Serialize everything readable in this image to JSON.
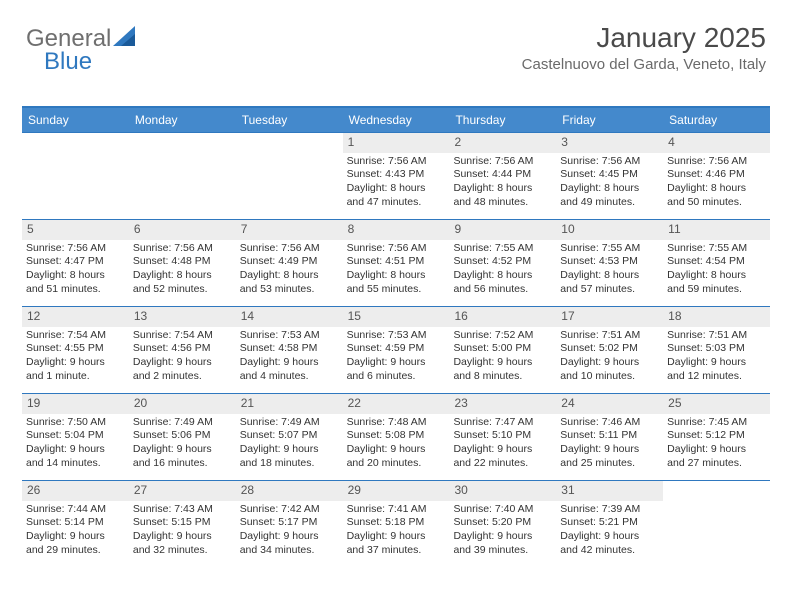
{
  "logo": {
    "text1": "General",
    "text2": "Blue"
  },
  "header": {
    "title": "January 2025",
    "location": "Castelnuovo del Garda, Veneto, Italy"
  },
  "colors": {
    "accent": "#2f78bf",
    "headerBar": "#4489cc",
    "dayBg": "#ededed"
  },
  "weekdays": [
    "Sunday",
    "Monday",
    "Tuesday",
    "Wednesday",
    "Thursday",
    "Friday",
    "Saturday"
  ],
  "labels": {
    "sunrise": "Sunrise:",
    "sunset": "Sunset:",
    "daylight": "Daylight:"
  },
  "weeks": [
    [
      {
        "day": "",
        "empty": true
      },
      {
        "day": "",
        "empty": true
      },
      {
        "day": "",
        "empty": true
      },
      {
        "day": "1",
        "sunrise": "7:56 AM",
        "sunset": "4:43 PM",
        "daylight": "8 hours and 47 minutes."
      },
      {
        "day": "2",
        "sunrise": "7:56 AM",
        "sunset": "4:44 PM",
        "daylight": "8 hours and 48 minutes."
      },
      {
        "day": "3",
        "sunrise": "7:56 AM",
        "sunset": "4:45 PM",
        "daylight": "8 hours and 49 minutes."
      },
      {
        "day": "4",
        "sunrise": "7:56 AM",
        "sunset": "4:46 PM",
        "daylight": "8 hours and 50 minutes."
      }
    ],
    [
      {
        "day": "5",
        "sunrise": "7:56 AM",
        "sunset": "4:47 PM",
        "daylight": "8 hours and 51 minutes."
      },
      {
        "day": "6",
        "sunrise": "7:56 AM",
        "sunset": "4:48 PM",
        "daylight": "8 hours and 52 minutes."
      },
      {
        "day": "7",
        "sunrise": "7:56 AM",
        "sunset": "4:49 PM",
        "daylight": "8 hours and 53 minutes."
      },
      {
        "day": "8",
        "sunrise": "7:56 AM",
        "sunset": "4:51 PM",
        "daylight": "8 hours and 55 minutes."
      },
      {
        "day": "9",
        "sunrise": "7:55 AM",
        "sunset": "4:52 PM",
        "daylight": "8 hours and 56 minutes."
      },
      {
        "day": "10",
        "sunrise": "7:55 AM",
        "sunset": "4:53 PM",
        "daylight": "8 hours and 57 minutes."
      },
      {
        "day": "11",
        "sunrise": "7:55 AM",
        "sunset": "4:54 PM",
        "daylight": "8 hours and 59 minutes."
      }
    ],
    [
      {
        "day": "12",
        "sunrise": "7:54 AM",
        "sunset": "4:55 PM",
        "daylight": "9 hours and 1 minute."
      },
      {
        "day": "13",
        "sunrise": "7:54 AM",
        "sunset": "4:56 PM",
        "daylight": "9 hours and 2 minutes."
      },
      {
        "day": "14",
        "sunrise": "7:53 AM",
        "sunset": "4:58 PM",
        "daylight": "9 hours and 4 minutes."
      },
      {
        "day": "15",
        "sunrise": "7:53 AM",
        "sunset": "4:59 PM",
        "daylight": "9 hours and 6 minutes."
      },
      {
        "day": "16",
        "sunrise": "7:52 AM",
        "sunset": "5:00 PM",
        "daylight": "9 hours and 8 minutes."
      },
      {
        "day": "17",
        "sunrise": "7:51 AM",
        "sunset": "5:02 PM",
        "daylight": "9 hours and 10 minutes."
      },
      {
        "day": "18",
        "sunrise": "7:51 AM",
        "sunset": "5:03 PM",
        "daylight": "9 hours and 12 minutes."
      }
    ],
    [
      {
        "day": "19",
        "sunrise": "7:50 AM",
        "sunset": "5:04 PM",
        "daylight": "9 hours and 14 minutes."
      },
      {
        "day": "20",
        "sunrise": "7:49 AM",
        "sunset": "5:06 PM",
        "daylight": "9 hours and 16 minutes."
      },
      {
        "day": "21",
        "sunrise": "7:49 AM",
        "sunset": "5:07 PM",
        "daylight": "9 hours and 18 minutes."
      },
      {
        "day": "22",
        "sunrise": "7:48 AM",
        "sunset": "5:08 PM",
        "daylight": "9 hours and 20 minutes."
      },
      {
        "day": "23",
        "sunrise": "7:47 AM",
        "sunset": "5:10 PM",
        "daylight": "9 hours and 22 minutes."
      },
      {
        "day": "24",
        "sunrise": "7:46 AM",
        "sunset": "5:11 PM",
        "daylight": "9 hours and 25 minutes."
      },
      {
        "day": "25",
        "sunrise": "7:45 AM",
        "sunset": "5:12 PM",
        "daylight": "9 hours and 27 minutes."
      }
    ],
    [
      {
        "day": "26",
        "sunrise": "7:44 AM",
        "sunset": "5:14 PM",
        "daylight": "9 hours and 29 minutes."
      },
      {
        "day": "27",
        "sunrise": "7:43 AM",
        "sunset": "5:15 PM",
        "daylight": "9 hours and 32 minutes."
      },
      {
        "day": "28",
        "sunrise": "7:42 AM",
        "sunset": "5:17 PM",
        "daylight": "9 hours and 34 minutes."
      },
      {
        "day": "29",
        "sunrise": "7:41 AM",
        "sunset": "5:18 PM",
        "daylight": "9 hours and 37 minutes."
      },
      {
        "day": "30",
        "sunrise": "7:40 AM",
        "sunset": "5:20 PM",
        "daylight": "9 hours and 39 minutes."
      },
      {
        "day": "31",
        "sunrise": "7:39 AM",
        "sunset": "5:21 PM",
        "daylight": "9 hours and 42 minutes."
      },
      {
        "day": "",
        "empty": true
      }
    ]
  ]
}
